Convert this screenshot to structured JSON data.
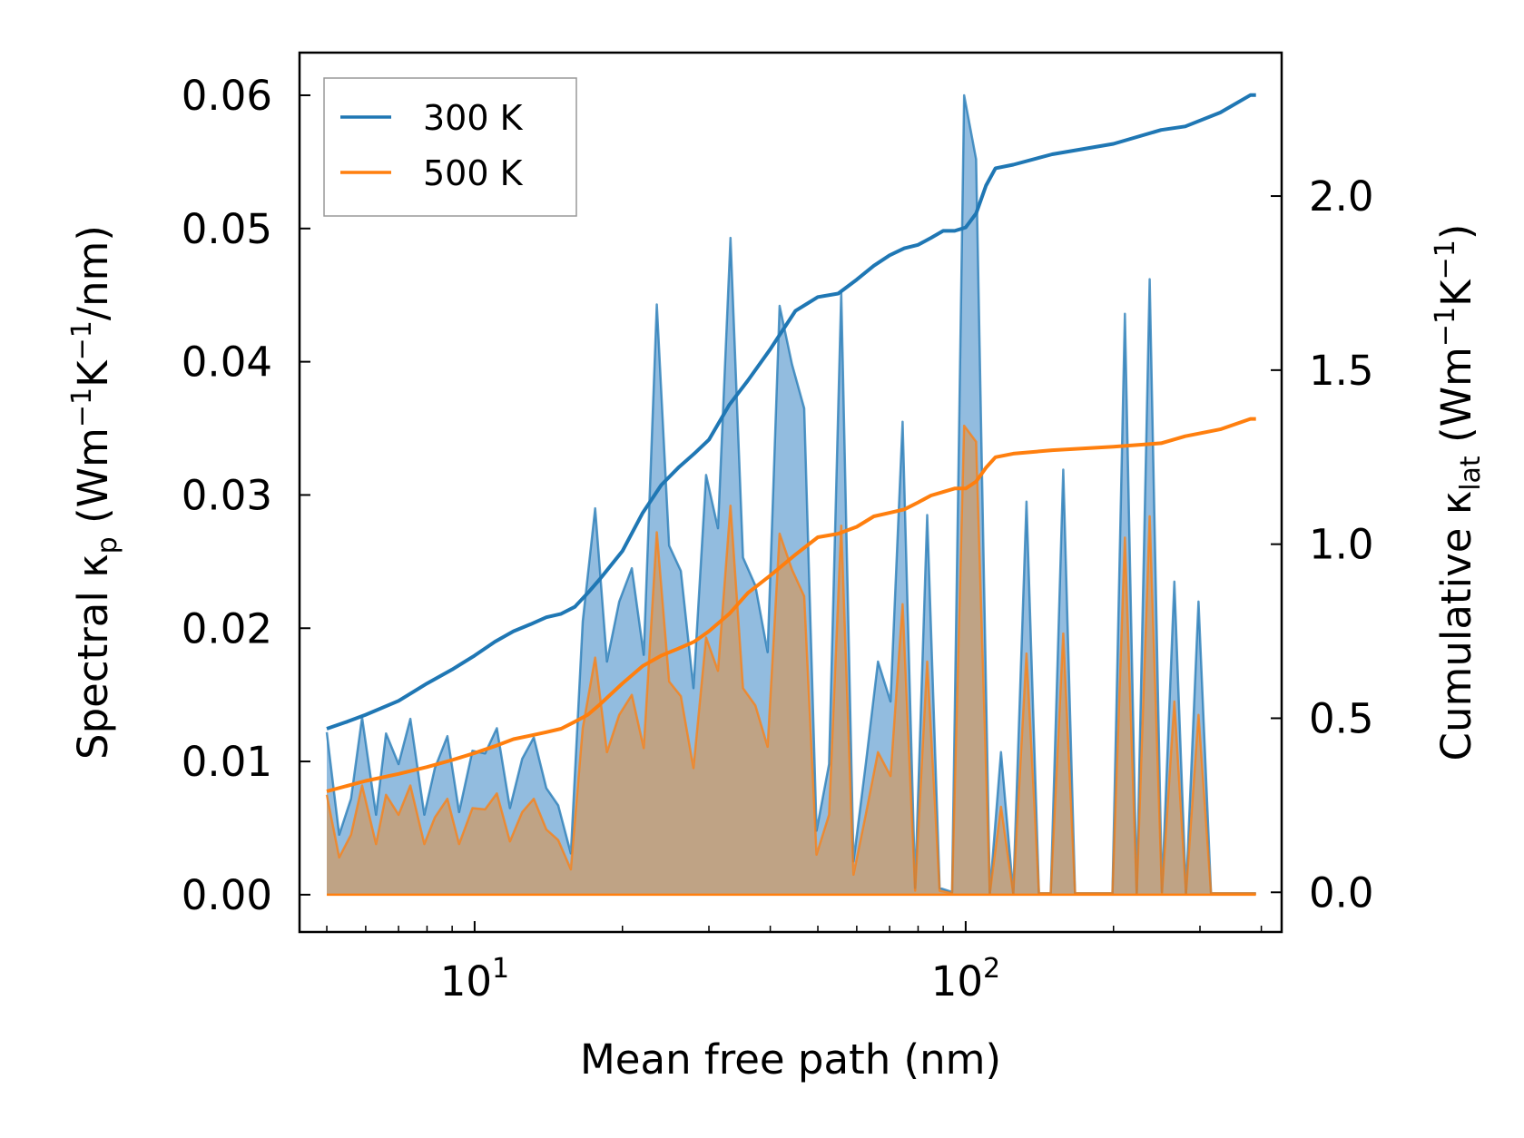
{
  "chart_data": {
    "type": "line",
    "title": "",
    "xlabel": "Mean free path (nm)",
    "ylabel_left": {
      "main": "Spectral κ",
      "sub": "p",
      "units_open": " (Wm",
      "exp1": "−1",
      "units_mid": "K",
      "exp2": "−1",
      "units_close": "/nm)"
    },
    "ylabel_right": {
      "main": "Cumulative κ",
      "sub": "lat",
      "units_open": " (Wm",
      "exp1": "−1",
      "units_mid": "K",
      "exp2": "−1",
      "units_close": ")"
    },
    "xscale": "log",
    "xlim": [
      4.4,
      440
    ],
    "ylim_left": [
      -0.0028,
      0.0632
    ],
    "ylim_right": [
      -0.114,
      2.412
    ],
    "x_ticks": [
      {
        "value": 10,
        "base": "10",
        "exp": "1"
      },
      {
        "value": 100,
        "base": "10",
        "exp": "2"
      }
    ],
    "y_left_ticks": [
      "0.00",
      "0.01",
      "0.02",
      "0.03",
      "0.04",
      "0.05",
      "0.06"
    ],
    "y_right_ticks": [
      "0.0",
      "0.5",
      "1.0",
      "1.5",
      "2.0"
    ],
    "legend": {
      "position": "upper-left",
      "entries": [
        {
          "label": "300 K",
          "color": "#1f77b4"
        },
        {
          "label": "500 K",
          "color": "#ff7f0e"
        }
      ]
    },
    "colors": {
      "s300": "#1f77b4",
      "s500": "#ff7f0e",
      "fill300": "#7fb0d9",
      "fill500": "#c4a07b"
    },
    "spectral": [
      {
        "name": "300 K",
        "x": [
          5,
          5.3,
          5.6,
          5.9,
          6.3,
          6.6,
          7,
          7.4,
          7.9,
          8.3,
          8.8,
          9.3,
          9.9,
          10.5,
          11.1,
          11.8,
          12.5,
          13.2,
          14,
          14.8,
          15.7,
          16.6,
          17.6,
          18.6,
          19.7,
          20.9,
          22.1,
          23.5,
          24.9,
          26.3,
          27.9,
          29.6,
          31.3,
          33.2,
          35.2,
          37.3,
          39.5,
          41.8,
          44.3,
          46.9,
          49.7,
          52.7,
          55.8,
          59.1,
          62.6,
          66.3,
          70.3,
          74.4,
          78.9,
          83.5,
          88.5,
          93.8,
          99.3,
          105,
          112,
          118,
          125,
          133,
          141,
          149,
          158,
          167,
          177,
          188,
          199,
          211,
          223,
          237,
          251,
          266,
          281,
          298,
          316,
          335,
          355,
          376,
          390
        ],
        "y": [
          0.0122,
          0.0045,
          0.0072,
          0.0133,
          0.006,
          0.0121,
          0.0098,
          0.0132,
          0.006,
          0.0095,
          0.0119,
          0.0062,
          0.0108,
          0.0106,
          0.0125,
          0.0065,
          0.0102,
          0.0118,
          0.008,
          0.0067,
          0.0031,
          0.0205,
          0.029,
          0.0175,
          0.022,
          0.0245,
          0.018,
          0.0443,
          0.0262,
          0.0243,
          0.0155,
          0.0315,
          0.0275,
          0.0493,
          0.0253,
          0.0232,
          0.0182,
          0.0442,
          0.0398,
          0.0365,
          0.0048,
          0.0098,
          0.0452,
          0.0025,
          0.0098,
          0.0175,
          0.0145,
          0.0355,
          0.0005,
          0.0285,
          0.0005,
          0.0002,
          0.06,
          0.0552,
          0.0001,
          0.0107,
          0.0001,
          0.0295,
          0.0001,
          0.0001,
          0.0319,
          0.0001,
          0.0001,
          0.0001,
          0.0001,
          0.0436,
          0.0001,
          0.0462,
          0.0002,
          0.0235,
          0.0001,
          0.022,
          0.0001,
          0.0001,
          0.0001,
          0.0001,
          0.0001
        ]
      },
      {
        "name": "500 K",
        "x": [
          5,
          5.3,
          5.6,
          5.9,
          6.3,
          6.6,
          7,
          7.4,
          7.9,
          8.3,
          8.8,
          9.3,
          9.9,
          10.5,
          11.1,
          11.8,
          12.5,
          13.2,
          14,
          14.8,
          15.7,
          16.6,
          17.6,
          18.6,
          19.7,
          20.9,
          22.1,
          23.5,
          24.9,
          26.3,
          27.9,
          29.6,
          31.3,
          33.2,
          35.2,
          37.3,
          39.5,
          41.8,
          44.3,
          46.9,
          49.7,
          52.7,
          55.8,
          59.1,
          62.6,
          66.3,
          70.3,
          74.4,
          78.9,
          83.5,
          88.5,
          93.8,
          99.3,
          105,
          112,
          118,
          125,
          133,
          141,
          149,
          158,
          167,
          177,
          188,
          199,
          211,
          223,
          237,
          251,
          266,
          281,
          298,
          316,
          335,
          355,
          376,
          390
        ],
        "y": [
          0.0075,
          0.0028,
          0.0045,
          0.0082,
          0.0038,
          0.0075,
          0.006,
          0.0082,
          0.0038,
          0.0058,
          0.0072,
          0.0038,
          0.0065,
          0.0064,
          0.0076,
          0.004,
          0.0062,
          0.0072,
          0.0049,
          0.0041,
          0.0019,
          0.0125,
          0.0178,
          0.0107,
          0.0135,
          0.015,
          0.011,
          0.0272,
          0.016,
          0.0149,
          0.0095,
          0.0193,
          0.0168,
          0.0292,
          0.0155,
          0.0142,
          0.0111,
          0.0271,
          0.0244,
          0.0224,
          0.003,
          0.006,
          0.0277,
          0.0015,
          0.006,
          0.0107,
          0.0089,
          0.0218,
          0.0003,
          0.0175,
          0.0003,
          0.0001,
          0.0352,
          0.034,
          0.0001,
          0.0066,
          0.0001,
          0.0181,
          0.0001,
          0.0001,
          0.0196,
          0.0001,
          0.0001,
          0.0001,
          0.0001,
          0.0268,
          0.0001,
          0.0284,
          0.0001,
          0.0145,
          0.0001,
          0.0135,
          0.0001,
          0.0001,
          0.0001,
          0.0001,
          0.0001
        ]
      }
    ],
    "cumulative": [
      {
        "name": "300 K",
        "x": [
          5,
          5.5,
          6,
          7,
          8,
          9,
          10,
          11,
          12,
          13,
          14,
          15,
          16,
          17,
          18,
          20,
          22,
          24,
          26,
          28,
          30,
          33,
          36,
          40,
          45,
          50,
          55,
          60,
          65,
          70,
          75,
          80,
          85,
          90,
          95,
          100,
          105,
          110,
          115,
          125,
          150,
          200,
          250,
          280,
          330,
          380,
          390
        ],
        "y": [
          0.47,
          0.49,
          0.51,
          0.55,
          0.6,
          0.64,
          0.68,
          0.72,
          0.75,
          0.77,
          0.79,
          0.8,
          0.82,
          0.86,
          0.9,
          0.98,
          1.09,
          1.17,
          1.22,
          1.26,
          1.3,
          1.4,
          1.47,
          1.56,
          1.67,
          1.71,
          1.72,
          1.76,
          1.8,
          1.83,
          1.85,
          1.86,
          1.88,
          1.9,
          1.9,
          1.91,
          1.95,
          2.03,
          2.08,
          2.09,
          2.12,
          2.15,
          2.19,
          2.2,
          2.24,
          2.29,
          2.29
        ]
      },
      {
        "name": "500 K",
        "x": [
          5,
          6,
          7,
          8,
          9,
          10,
          11,
          12,
          13,
          14,
          15,
          16,
          17,
          18,
          20,
          22,
          24,
          26,
          28,
          30,
          33,
          36,
          40,
          45,
          50,
          55,
          60,
          65,
          70,
          75,
          80,
          85,
          90,
          95,
          100,
          105,
          110,
          115,
          125,
          150,
          200,
          250,
          280,
          330,
          380,
          390
        ],
        "y": [
          0.29,
          0.32,
          0.34,
          0.36,
          0.38,
          0.4,
          0.42,
          0.44,
          0.45,
          0.46,
          0.47,
          0.49,
          0.51,
          0.54,
          0.6,
          0.65,
          0.68,
          0.7,
          0.72,
          0.75,
          0.8,
          0.86,
          0.91,
          0.97,
          1.02,
          1.03,
          1.05,
          1.08,
          1.09,
          1.1,
          1.12,
          1.14,
          1.15,
          1.16,
          1.16,
          1.18,
          1.22,
          1.25,
          1.26,
          1.27,
          1.28,
          1.29,
          1.31,
          1.33,
          1.36,
          1.36
        ]
      }
    ]
  }
}
